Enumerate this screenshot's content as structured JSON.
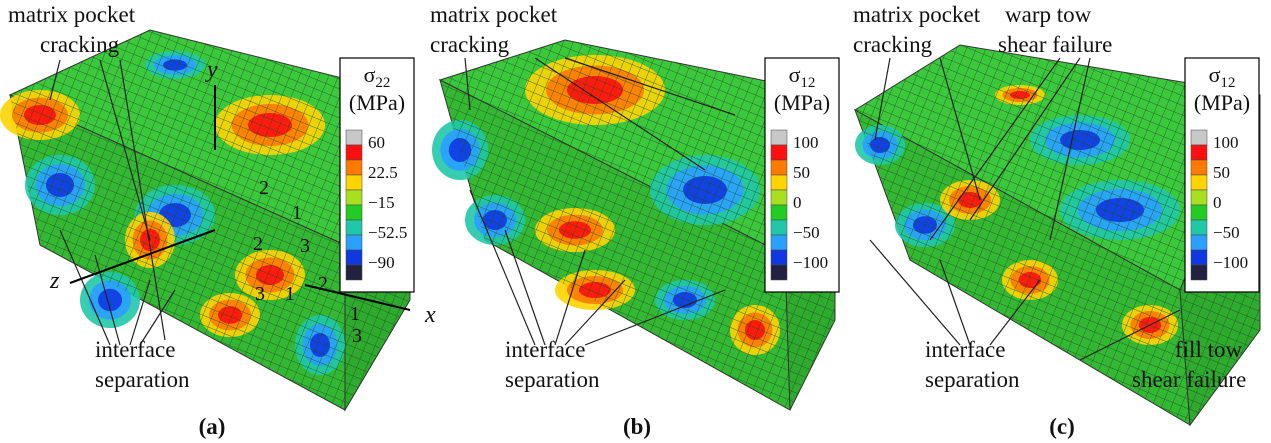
{
  "panels": [
    {
      "label": "(a)",
      "annotations": [
        [
          "matrix pocket",
          "cracking"
        ],
        [
          "interface",
          "separation"
        ]
      ],
      "legend": {
        "symbol": "σ",
        "subscript": "22",
        "unit": "(MPa)",
        "ticks": [
          "60",
          "22.5",
          "−15",
          "−52.5",
          "−90"
        ]
      },
      "axes": [
        "y",
        "z",
        "x"
      ],
      "local_axes": [
        "2",
        "1",
        "3",
        "2",
        "1",
        "3",
        "2",
        "1",
        "3"
      ]
    },
    {
      "label": "(b)",
      "annotations": [
        [
          "matrix pocket",
          "cracking"
        ],
        [
          "interface",
          "separation"
        ]
      ],
      "legend": {
        "symbol": "σ",
        "subscript": "12",
        "unit": "(MPa)",
        "ticks": [
          "100",
          "50",
          "0",
          "−50",
          "−100"
        ]
      }
    },
    {
      "label": "(c)",
      "annotations": [
        [
          "matrix pocket",
          "cracking"
        ],
        [
          "interface",
          "separation"
        ],
        [
          "warp tow",
          "shear failure"
        ],
        [
          "fill tow",
          "shear failure"
        ]
      ],
      "legend": {
        "symbol": "σ",
        "subscript": "12",
        "unit": "(MPa)",
        "ticks": [
          "100",
          "50",
          "0",
          "−50",
          "−100"
        ]
      }
    }
  ],
  "colorbar_colors": [
    "#c8c8c8",
    "#ff1010",
    "#ff7a00",
    "#ffd400",
    "#a8e020",
    "#22cc22",
    "#20c8a8",
    "#2aa0ff",
    "#1038e0",
    "#222240"
  ]
}
